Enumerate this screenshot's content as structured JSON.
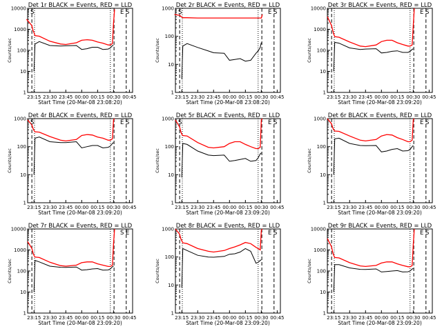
{
  "chart_data": [
    {
      "type": "line",
      "title": "Det 1r BLACK = Events, RED = LLD",
      "xlabel": "Start Time (20-Mar-08 23:08:20)",
      "ylabel": "Counts/sec",
      "yscale": "log",
      "ylim": [
        1,
        10000
      ],
      "x": [
        "23:08",
        "23:13",
        "23:14",
        "23:15",
        "23:16",
        "23:20",
        "23:30",
        "23:40",
        "23:45",
        "23:55",
        "00:00",
        "00:05",
        "00:10",
        "00:15",
        "00:20",
        "00:25",
        "00:27",
        "00:29",
        "00:30",
        "00:31",
        "00:32"
      ],
      "series": [
        {
          "name": "Events",
          "color": "#000000",
          "values": [
            null,
            null,
            null,
            10,
            200,
            260,
            170,
            160,
            165,
            170,
            110,
            120,
            140,
            140,
            110,
            115,
            130,
            170,
            170,
            null,
            null
          ]
        },
        {
          "name": "LLD",
          "color": "#ff0000",
          "values": [
            3000,
            1500,
            900,
            700,
            500,
            470,
            270,
            200,
            190,
            230,
            300,
            320,
            300,
            250,
            220,
            180,
            180,
            210,
            2000,
            9000,
            null
          ]
        }
      ],
      "markers": [
        "S",
        "E",
        "S"
      ]
    },
    {
      "type": "line",
      "title": "Det 2r BLACK = Events, RED = LLD",
      "xlabel": "Start Time (20-Mar-08 23:08:20)",
      "ylabel": "Counts/sec",
      "yscale": "log",
      "ylim": [
        1,
        1000
      ],
      "x": [
        "23:08",
        "23:13",
        "23:14",
        "23:15",
        "23:16",
        "23:20",
        "23:30",
        "23:40",
        "23:45",
        "23:55",
        "00:00",
        "00:05",
        "00:10",
        "00:15",
        "00:20",
        "00:25",
        "00:27",
        "00:29",
        "00:30",
        "00:31",
        "00:32"
      ],
      "series": [
        {
          "name": "Events",
          "color": "#000000",
          "values": [
            null,
            null,
            null,
            3,
            45,
            55,
            40,
            30,
            26,
            25,
            14,
            15,
            16,
            13,
            14,
            25,
            30,
            40,
            60,
            null,
            null
          ]
        },
        {
          "name": "LLD",
          "color": "#ff0000",
          "values": [
            600,
            560,
            520,
            480,
            460,
            460,
            450,
            450,
            450,
            450,
            450,
            450,
            450,
            450,
            450,
            450,
            450,
            450,
            450,
            600,
            null
          ]
        }
      ],
      "markers": [
        "S",
        "E",
        "S"
      ]
    },
    {
      "type": "line",
      "title": "Det 3r BLACK = Events, RED = LLD",
      "xlabel": "Start Time (20-Mar-08 23:09:20)",
      "ylabel": "Counts/sec",
      "yscale": "log",
      "ylim": [
        1,
        10000
      ],
      "x": [
        "23:09",
        "23:13",
        "23:14",
        "23:15",
        "23:16",
        "23:20",
        "23:30",
        "23:40",
        "23:45",
        "23:55",
        "00:00",
        "00:05",
        "00:10",
        "00:15",
        "00:20",
        "00:25",
        "00:27",
        "00:29",
        "00:30",
        "00:31",
        "00:32"
      ],
      "series": [
        {
          "name": "Events",
          "color": "#000000",
          "values": [
            null,
            null,
            null,
            10,
            240,
            220,
            130,
            110,
            115,
            120,
            75,
            80,
            90,
            95,
            80,
            80,
            90,
            110,
            120,
            null,
            null
          ]
        },
        {
          "name": "LLD",
          "color": "#ff0000",
          "values": [
            4000,
            1500,
            900,
            600,
            450,
            420,
            250,
            160,
            150,
            180,
            260,
            300,
            300,
            230,
            190,
            160,
            160,
            180,
            1500,
            10000,
            null
          ]
        }
      ],
      "markers": [
        "E",
        "S"
      ]
    },
    {
      "type": "line",
      "title": "Det 4r BLACK = Events, RED = LLD",
      "xlabel": "Start Time (20-Mar-08 23:09:20)",
      "ylabel": "Counts/sec",
      "yscale": "log",
      "ylim": [
        1,
        1000
      ],
      "x": [
        "23:09",
        "23:13",
        "23:14",
        "23:15",
        "23:16",
        "23:20",
        "23:30",
        "23:40",
        "23:45",
        "23:55",
        "00:00",
        "00:05",
        "00:10",
        "00:15",
        "00:20",
        "00:25",
        "00:27",
        "00:29",
        "00:30",
        "00:31",
        "00:32"
      ],
      "series": [
        {
          "name": "Events",
          "color": "#000000",
          "values": [
            null,
            null,
            null,
            10,
            200,
            220,
            150,
            140,
            140,
            150,
            90,
            100,
            110,
            110,
            90,
            95,
            105,
            130,
            140,
            null,
            null
          ]
        },
        {
          "name": "LLD",
          "color": "#ff0000",
          "values": [
            900,
            600,
            450,
            380,
            340,
            330,
            230,
            170,
            160,
            180,
            250,
            270,
            260,
            220,
            200,
            170,
            170,
            190,
            900,
            1000,
            null
          ]
        }
      ],
      "markers": [
        "S",
        "E",
        "S"
      ]
    },
    {
      "type": "line",
      "title": "Det 5r BLACK = Events, RED = LLD",
      "xlabel": "Start Time (20-Mar-08 23:09:20)",
      "ylabel": "Counts/sec",
      "yscale": "log",
      "ylim": [
        1,
        1000
      ],
      "x": [
        "23:09",
        "23:13",
        "23:14",
        "23:15",
        "23:16",
        "23:20",
        "23:30",
        "23:40",
        "23:45",
        "23:55",
        "00:00",
        "00:05",
        "00:10",
        "00:15",
        "00:20",
        "00:25",
        "00:27",
        "00:29",
        "00:30",
        "00:31",
        "00:32"
      ],
      "series": [
        {
          "name": "Events",
          "color": "#000000",
          "values": [
            null,
            null,
            null,
            8,
            130,
            120,
            70,
            50,
            48,
            50,
            30,
            32,
            35,
            38,
            30,
            32,
            40,
            55,
            60,
            null,
            null
          ]
        },
        {
          "name": "LLD",
          "color": "#ff0000",
          "values": [
            900,
            500,
            350,
            280,
            250,
            240,
            140,
            95,
            90,
            100,
            130,
            150,
            150,
            120,
            100,
            85,
            85,
            95,
            900,
            1000,
            null
          ]
        }
      ],
      "markers": [
        "S",
        "E",
        "S"
      ]
    },
    {
      "type": "line",
      "title": "Det 6r BLACK = Events, RED = LLD",
      "xlabel": "Start Time (20-Mar-08 23:09:20)",
      "ylabel": "Counts/sec",
      "yscale": "log",
      "ylim": [
        1,
        1000
      ],
      "x": [
        "23:09",
        "23:13",
        "23:14",
        "23:15",
        "23:16",
        "23:20",
        "23:30",
        "23:40",
        "23:45",
        "23:55",
        "00:00",
        "00:05",
        "00:10",
        "00:15",
        "00:20",
        "00:25",
        "00:27",
        "00:29",
        "00:30",
        "00:31",
        "00:32"
      ],
      "series": [
        {
          "name": "Events",
          "color": "#000000",
          "values": [
            null,
            null,
            null,
            10,
            190,
            200,
            130,
            110,
            108,
            110,
            65,
            70,
            80,
            85,
            70,
            72,
            80,
            100,
            110,
            null,
            null
          ]
        },
        {
          "name": "LLD",
          "color": "#ff0000",
          "values": [
            1000,
            650,
            480,
            400,
            360,
            350,
            240,
            170,
            160,
            180,
            240,
            270,
            260,
            210,
            180,
            150,
            150,
            170,
            900,
            1000,
            null
          ]
        }
      ],
      "markers": [
        "E",
        "S"
      ]
    },
    {
      "type": "line",
      "title": "Det 7r BLACK = Events, RED = LLD",
      "xlabel": "Start Time (20-Mar-08 23:09:20)",
      "ylabel": "Counts/sec",
      "yscale": "log",
      "ylim": [
        1,
        10000
      ],
      "x": [
        "23:09",
        "23:13",
        "23:14",
        "23:15",
        "23:16",
        "23:20",
        "23:30",
        "23:40",
        "23:45",
        "23:55",
        "00:00",
        "00:05",
        "00:10",
        "00:15",
        "00:20",
        "00:25",
        "00:27",
        "00:29",
        "00:30",
        "00:31",
        "00:32"
      ],
      "series": [
        {
          "name": "Events",
          "color": "#000000",
          "values": [
            null,
            null,
            null,
            10,
            320,
            270,
            170,
            150,
            148,
            155,
            110,
            115,
            125,
            130,
            110,
            112,
            125,
            160,
            170,
            null,
            null
          ]
        },
        {
          "name": "LLD",
          "color": "#ff0000",
          "values": [
            2500,
            1200,
            750,
            550,
            460,
            440,
            260,
            180,
            170,
            190,
            250,
            270,
            270,
            220,
            190,
            165,
            165,
            190,
            2000,
            10000,
            null
          ]
        }
      ],
      "markers": [
        "S",
        "E"
      ]
    },
    {
      "type": "line",
      "title": "Det 8r BLACK = Events, RED = LLD",
      "xlabel": "Start Time (20-Mar-08 23:09:20)",
      "ylabel": "Counts/sec",
      "yscale": "log",
      "ylim": [
        1,
        1000
      ],
      "x": [
        "23:09",
        "23:13",
        "23:14",
        "23:15",
        "23:16",
        "23:20",
        "23:30",
        "23:40",
        "23:45",
        "23:55",
        "00:00",
        "00:05",
        "00:10",
        "00:15",
        "00:20",
        "00:25",
        "00:27",
        "00:29",
        "00:30",
        "00:31",
        "00:32"
      ],
      "series": [
        {
          "name": "Events",
          "color": "#000000",
          "values": [
            null,
            null,
            null,
            8,
            200,
            170,
            115,
            100,
            98,
            105,
            125,
            130,
            150,
            200,
            160,
            60,
            65,
            75,
            80,
            null,
            null
          ]
        },
        {
          "name": "LLD",
          "color": "#ff0000",
          "values": [
            1000,
            650,
            450,
            380,
            320,
            300,
            200,
            160,
            150,
            170,
            200,
            230,
            270,
            330,
            300,
            220,
            200,
            180,
            900,
            1000,
            null
          ]
        }
      ],
      "markers": [
        "E",
        "S"
      ]
    },
    {
      "type": "line",
      "title": "Det 9r BLACK = Events, RED = LLD",
      "xlabel": "Start Time (20-Mar-08 23:09:20)",
      "ylabel": "Counts/sec",
      "yscale": "log",
      "ylim": [
        1,
        10000
      ],
      "x": [
        "23:09",
        "23:13",
        "23:14",
        "23:15",
        "23:16",
        "23:20",
        "23:30",
        "23:40",
        "23:45",
        "23:55",
        "00:00",
        "00:05",
        "00:10",
        "00:15",
        "00:20",
        "00:25",
        "00:27",
        "00:29",
        "00:30",
        "00:31",
        "00:32"
      ],
      "series": [
        {
          "name": "Events",
          "color": "#000000",
          "values": [
            null,
            null,
            null,
            10,
            200,
            200,
            140,
            120,
            118,
            125,
            90,
            95,
            100,
            105,
            90,
            92,
            100,
            125,
            130,
            null,
            null
          ]
        },
        {
          "name": "LLD",
          "color": "#ff0000",
          "values": [
            3500,
            1400,
            800,
            560,
            440,
            420,
            250,
            175,
            165,
            185,
            240,
            270,
            270,
            220,
            185,
            160,
            160,
            180,
            1800,
            10000,
            null
          ]
        }
      ],
      "markers": [
        "E",
        "S"
      ]
    }
  ]
}
